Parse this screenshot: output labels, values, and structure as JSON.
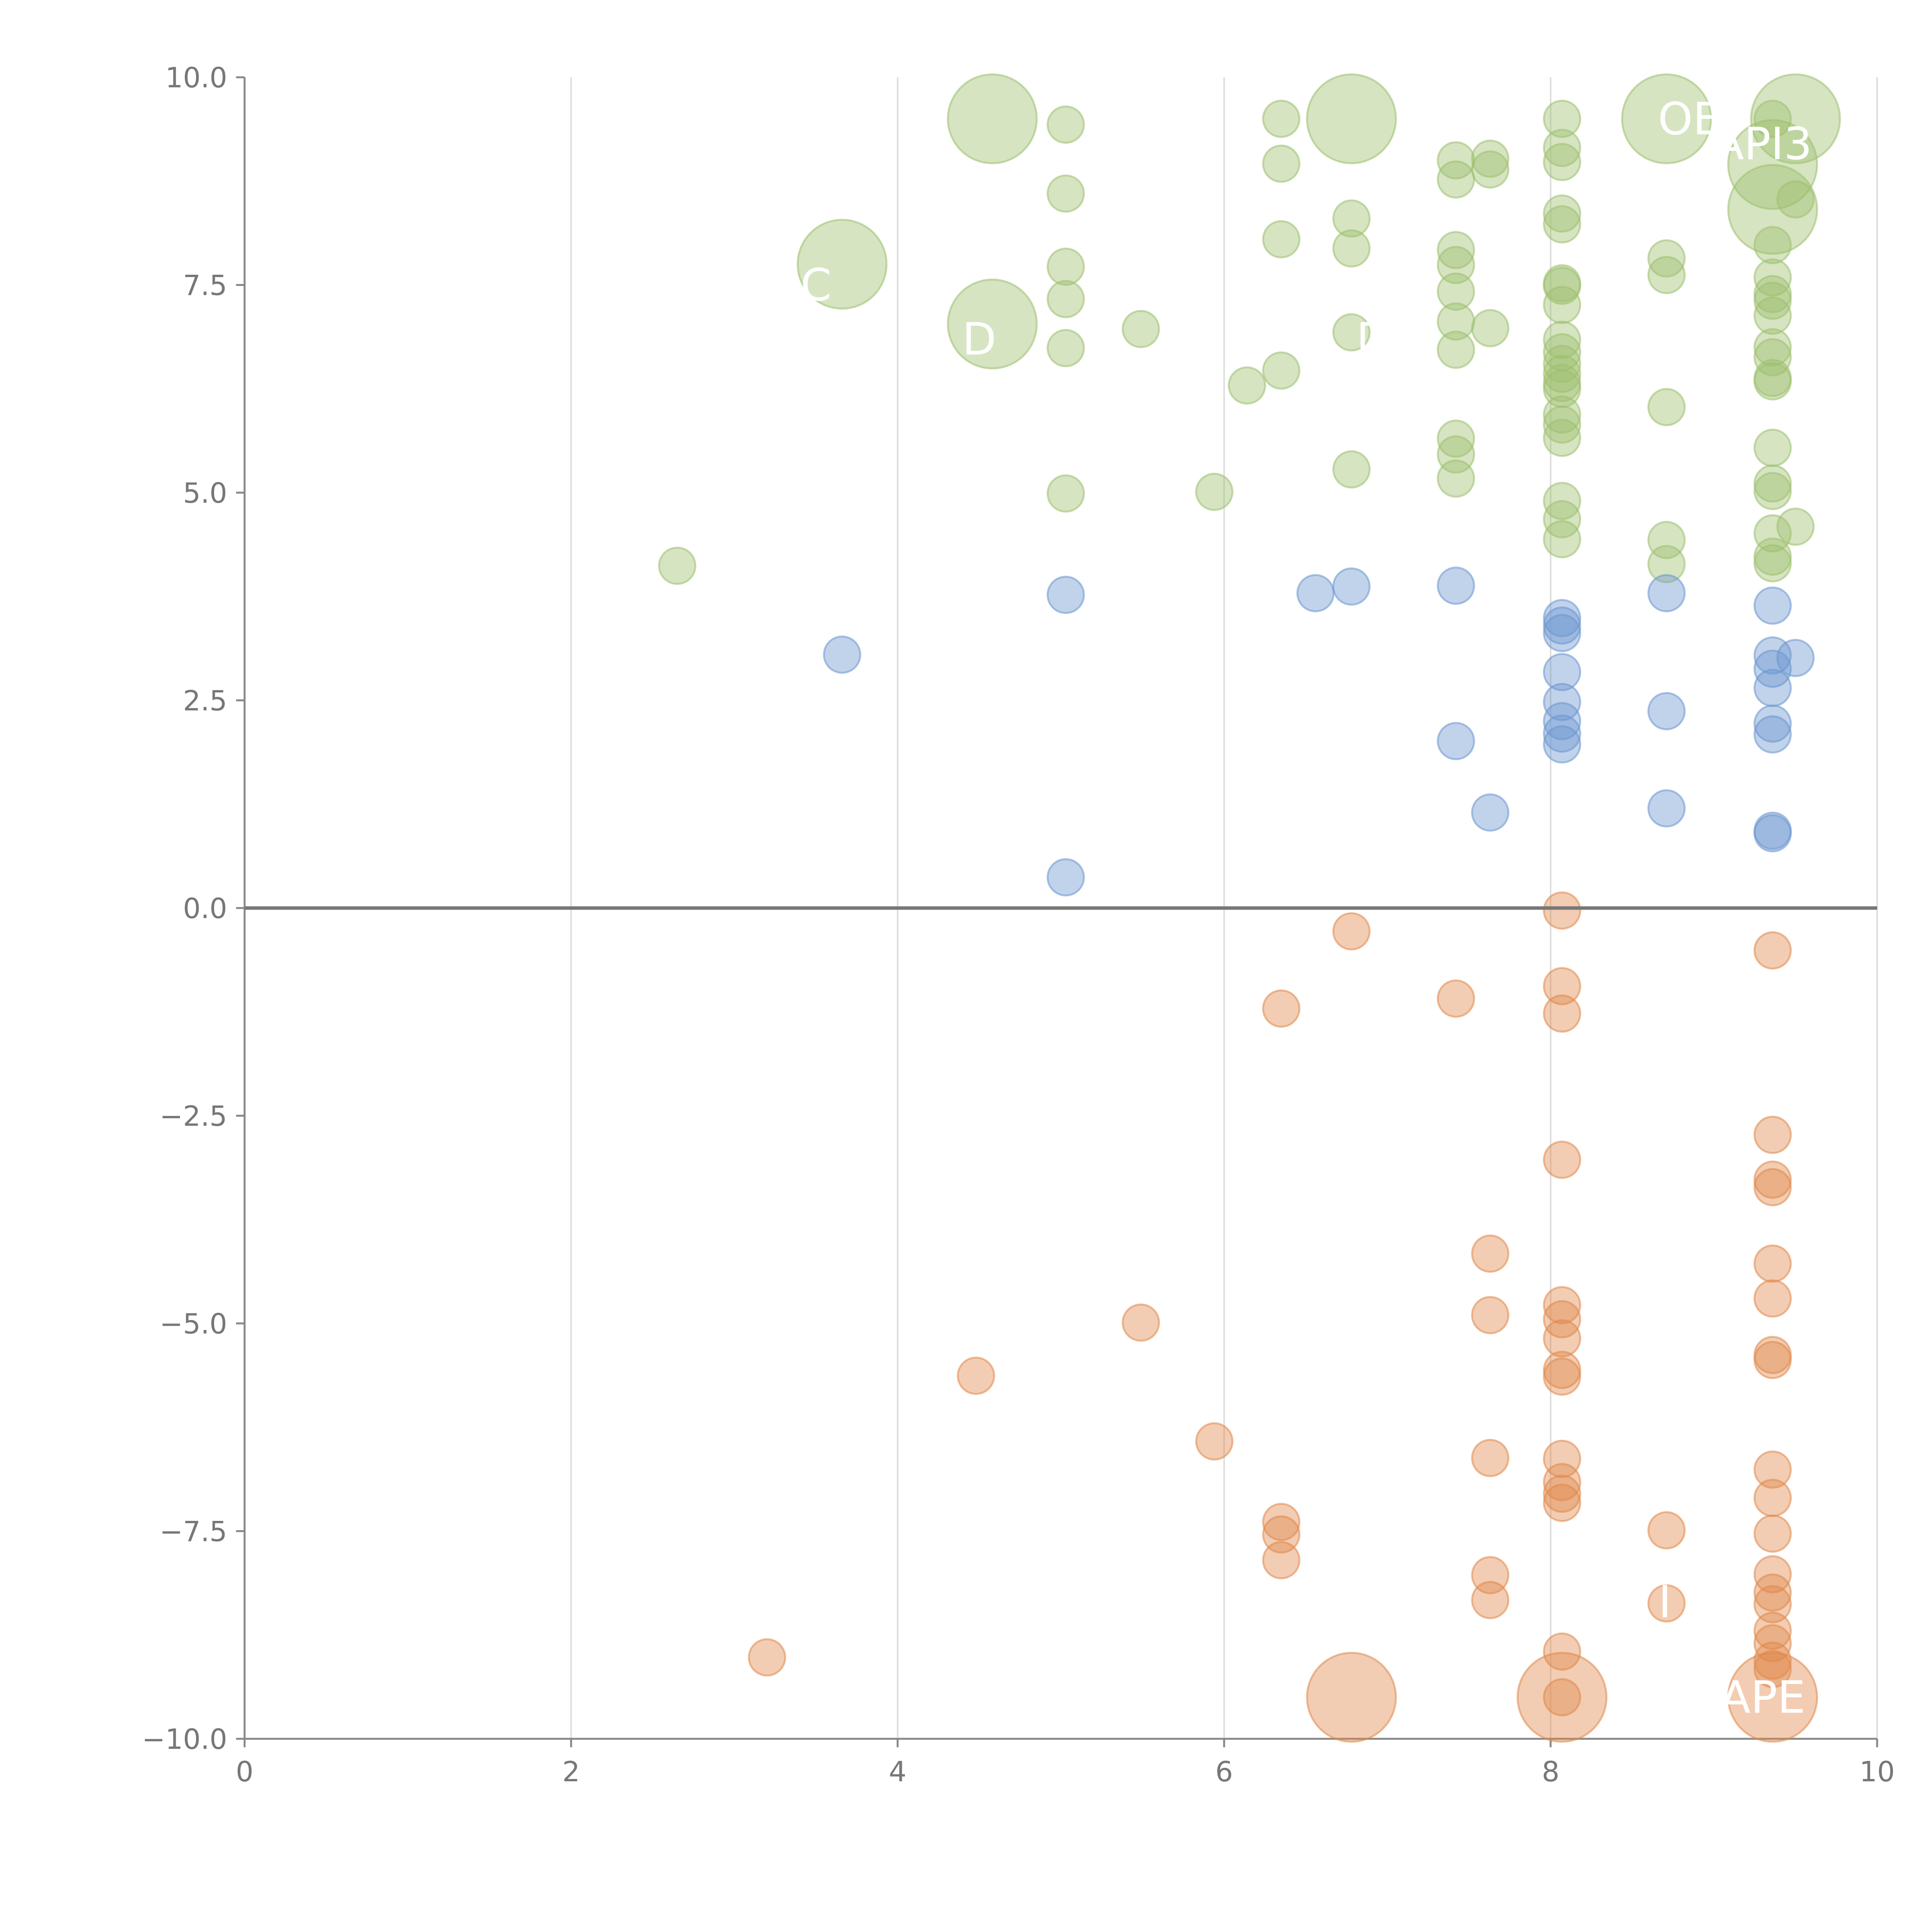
{
  "chart_data": {
    "type": "scatter",
    "title": "",
    "xlabel": "",
    "ylabel": "",
    "xlim": [
      0,
      10
    ],
    "ylim": [
      -10,
      10
    ],
    "x_ticks": [
      "0",
      "2",
      "4",
      "6",
      "8",
      "10"
    ],
    "y_ticks": [
      "10.0",
      "7.5",
      "5.0",
      "2.5",
      "0.0",
      "−2.5",
      "−5.0",
      "−7.5",
      "−10.0"
    ],
    "grid": "vertical",
    "colors": {
      "up_strong": "#9dbf6d",
      "up_moderate": "#6b96cf",
      "down": "#e0894b"
    },
    "series": [
      {
        "name": "up_strong",
        "color": "#9dbf6d",
        "points": [
          [
            2.65,
            4.12,
            "s"
          ],
          [
            3.66,
            7.75,
            "l"
          ],
          [
            4.58,
            9.5,
            "l"
          ],
          [
            4.58,
            7.03,
            "l"
          ],
          [
            5.03,
            9.43,
            "s"
          ],
          [
            5.03,
            8.6,
            "s"
          ],
          [
            5.03,
            7.72,
            "s"
          ],
          [
            5.03,
            7.33,
            "s"
          ],
          [
            5.03,
            6.74,
            "s"
          ],
          [
            5.03,
            4.99,
            "s"
          ],
          [
            5.49,
            6.97,
            "s"
          ],
          [
            5.94,
            5.01,
            "s"
          ],
          [
            6.14,
            6.29,
            "s"
          ],
          [
            6.35,
            9.5,
            "s"
          ],
          [
            6.35,
            8.96,
            "s"
          ],
          [
            6.35,
            8.05,
            "s"
          ],
          [
            6.35,
            6.47,
            "s"
          ],
          [
            6.78,
            9.5,
            "l"
          ],
          [
            6.78,
            8.3,
            "s"
          ],
          [
            6.78,
            7.94,
            "s"
          ],
          [
            6.78,
            6.93,
            "s"
          ],
          [
            6.78,
            5.28,
            "s"
          ],
          [
            7.42,
            9.0,
            "s"
          ],
          [
            7.42,
            8.77,
            "s"
          ],
          [
            7.42,
            7.92,
            "s"
          ],
          [
            7.42,
            7.74,
            "s"
          ],
          [
            7.42,
            7.42,
            "s"
          ],
          [
            7.42,
            7.06,
            "s"
          ],
          [
            7.42,
            6.72,
            "s"
          ],
          [
            7.42,
            5.65,
            "s"
          ],
          [
            7.42,
            5.46,
            "s"
          ],
          [
            7.42,
            5.17,
            "s"
          ],
          [
            7.63,
            9.02,
            "s"
          ],
          [
            7.63,
            8.89,
            "s"
          ],
          [
            7.63,
            6.98,
            "s"
          ],
          [
            8.07,
            9.5,
            "s"
          ],
          [
            8.07,
            9.15,
            "s"
          ],
          [
            8.07,
            8.98,
            "s"
          ],
          [
            8.07,
            8.36,
            "s"
          ],
          [
            8.07,
            8.23,
            "s"
          ],
          [
            8.07,
            7.52,
            "s"
          ],
          [
            8.07,
            7.49,
            "s"
          ],
          [
            8.07,
            7.26,
            "s"
          ],
          [
            8.07,
            6.84,
            "s"
          ],
          [
            8.07,
            6.69,
            "s"
          ],
          [
            8.07,
            6.55,
            "s"
          ],
          [
            8.07,
            6.43,
            "s"
          ],
          [
            8.07,
            6.32,
            "s"
          ],
          [
            8.07,
            6.25,
            "s"
          ],
          [
            8.07,
            5.94,
            "s"
          ],
          [
            8.07,
            5.82,
            "s"
          ],
          [
            8.07,
            5.66,
            "s"
          ],
          [
            8.07,
            4.9,
            "s"
          ],
          [
            8.07,
            4.68,
            "s"
          ],
          [
            8.07,
            4.44,
            "s"
          ],
          [
            8.71,
            9.5,
            "l"
          ],
          [
            8.71,
            7.82,
            "s"
          ],
          [
            8.71,
            7.62,
            "s"
          ],
          [
            8.71,
            6.03,
            "s"
          ],
          [
            8.71,
            4.43,
            "s"
          ],
          [
            8.71,
            4.14,
            "s"
          ],
          [
            9.36,
            9.5,
            "s"
          ],
          [
            9.36,
            8.95,
            "l"
          ],
          [
            9.36,
            8.41,
            "l"
          ],
          [
            9.36,
            7.98,
            "s"
          ],
          [
            9.36,
            7.59,
            "s"
          ],
          [
            9.36,
            7.39,
            "s"
          ],
          [
            9.36,
            7.31,
            "s"
          ],
          [
            9.36,
            7.13,
            "s"
          ],
          [
            9.36,
            6.75,
            "s"
          ],
          [
            9.36,
            6.63,
            "s"
          ],
          [
            9.36,
            6.38,
            "s"
          ],
          [
            9.36,
            6.34,
            "s"
          ],
          [
            9.36,
            5.54,
            "s"
          ],
          [
            9.36,
            5.11,
            "s"
          ],
          [
            9.36,
            5.02,
            "s"
          ],
          [
            9.36,
            4.51,
            "s"
          ],
          [
            9.36,
            4.23,
            "s"
          ],
          [
            9.36,
            4.15,
            "s"
          ],
          [
            9.5,
            9.5,
            "l"
          ],
          [
            9.5,
            8.53,
            "s"
          ],
          [
            9.5,
            4.59,
            "s"
          ]
        ]
      },
      {
        "name": "up_moderate",
        "color": "#6b96cf",
        "points": [
          [
            3.66,
            3.05,
            "s"
          ],
          [
            5.03,
            3.77,
            "s"
          ],
          [
            5.03,
            0.37,
            "s"
          ],
          [
            6.56,
            3.79,
            "s"
          ],
          [
            6.78,
            3.87,
            "s"
          ],
          [
            7.42,
            3.88,
            "s"
          ],
          [
            7.42,
            2.01,
            "s"
          ],
          [
            7.63,
            1.15,
            "s"
          ],
          [
            8.07,
            3.49,
            "s"
          ],
          [
            8.07,
            3.4,
            "s"
          ],
          [
            8.07,
            3.31,
            "s"
          ],
          [
            8.07,
            2.84,
            "s"
          ],
          [
            8.07,
            2.48,
            "s"
          ],
          [
            8.07,
            2.25,
            "s"
          ],
          [
            8.07,
            2.1,
            "s"
          ],
          [
            8.07,
            1.97,
            "s"
          ],
          [
            8.71,
            3.79,
            "s"
          ],
          [
            8.71,
            2.37,
            "s"
          ],
          [
            8.71,
            1.2,
            "s"
          ],
          [
            9.36,
            3.64,
            "s"
          ],
          [
            9.36,
            3.04,
            "s"
          ],
          [
            9.36,
            2.88,
            "s"
          ],
          [
            9.36,
            2.65,
            "s"
          ],
          [
            9.36,
            2.22,
            "s"
          ],
          [
            9.36,
            2.09,
            "s"
          ],
          [
            9.36,
            0.93,
            "s"
          ],
          [
            9.36,
            0.9,
            "s"
          ],
          [
            9.5,
            3.01,
            "s"
          ]
        ]
      },
      {
        "name": "down",
        "color": "#e0894b",
        "points": [
          [
            3.2,
            -9.02,
            "s"
          ],
          [
            4.48,
            -5.63,
            "s"
          ],
          [
            5.49,
            -4.99,
            "s"
          ],
          [
            5.94,
            -6.42,
            "s"
          ],
          [
            6.35,
            -1.21,
            "s"
          ],
          [
            6.35,
            -7.39,
            "s"
          ],
          [
            6.35,
            -7.54,
            "s"
          ],
          [
            6.35,
            -7.85,
            "s"
          ],
          [
            6.78,
            -0.28,
            "s"
          ],
          [
            6.78,
            -9.5,
            "l"
          ],
          [
            7.42,
            -1.09,
            "s"
          ],
          [
            7.63,
            -4.16,
            "s"
          ],
          [
            7.63,
            -4.9,
            "s"
          ],
          [
            7.63,
            -6.62,
            "s"
          ],
          [
            7.63,
            -8.03,
            "s"
          ],
          [
            7.63,
            -8.33,
            "s"
          ],
          [
            8.07,
            -0.03,
            "s"
          ],
          [
            8.07,
            -0.94,
            "s"
          ],
          [
            8.07,
            -1.27,
            "s"
          ],
          [
            8.07,
            -3.03,
            "s"
          ],
          [
            8.07,
            -4.78,
            "s"
          ],
          [
            8.07,
            -4.95,
            "s"
          ],
          [
            8.07,
            -5.18,
            "s"
          ],
          [
            8.07,
            -5.56,
            "s"
          ],
          [
            8.07,
            -5.64,
            "s"
          ],
          [
            8.07,
            -6.63,
            "s"
          ],
          [
            8.07,
            -6.91,
            "s"
          ],
          [
            8.07,
            -7.05,
            "s"
          ],
          [
            8.07,
            -7.16,
            "s"
          ],
          [
            8.07,
            -8.95,
            "s"
          ],
          [
            8.07,
            -9.5,
            "l"
          ],
          [
            8.07,
            -9.5,
            "s"
          ],
          [
            8.71,
            -7.49,
            "s"
          ],
          [
            8.71,
            -8.37,
            "s"
          ],
          [
            9.36,
            -0.51,
            "s"
          ],
          [
            9.36,
            -2.73,
            "s"
          ],
          [
            9.36,
            -3.27,
            "s"
          ],
          [
            9.36,
            -3.36,
            "s"
          ],
          [
            9.36,
            -4.28,
            "s"
          ],
          [
            9.36,
            -4.7,
            "s"
          ],
          [
            9.36,
            -5.38,
            "s"
          ],
          [
            9.36,
            -5.44,
            "s"
          ],
          [
            9.36,
            -6.76,
            "s"
          ],
          [
            9.36,
            -7.1,
            "s"
          ],
          [
            9.36,
            -7.53,
            "s"
          ],
          [
            9.36,
            -8.02,
            "s"
          ],
          [
            9.36,
            -8.24,
            "s"
          ],
          [
            9.36,
            -8.38,
            "s"
          ],
          [
            9.36,
            -8.7,
            "s"
          ],
          [
            9.36,
            -8.85,
            "s"
          ],
          [
            9.36,
            -9.06,
            "s"
          ],
          [
            9.36,
            -9.16,
            "s"
          ],
          [
            9.36,
            -9.5,
            "l"
          ]
        ]
      }
    ],
    "annotations": [
      {
        "text": "OE",
        "x": 8.85,
        "y": 9.5
      },
      {
        "text": "API3",
        "x": 9.3,
        "y": 9.2
      },
      {
        "text": "DE",
        "x": 7.0,
        "y": 6.85
      },
      {
        "text": "D",
        "x": 4.5,
        "y": 6.85
      },
      {
        "text": "C",
        "x": 3.5,
        "y": 7.5
      },
      {
        "text": "I",
        "x": 8.7,
        "y": -8.35
      },
      {
        "text": "APE",
        "x": 9.3,
        "y": -9.5
      }
    ]
  }
}
